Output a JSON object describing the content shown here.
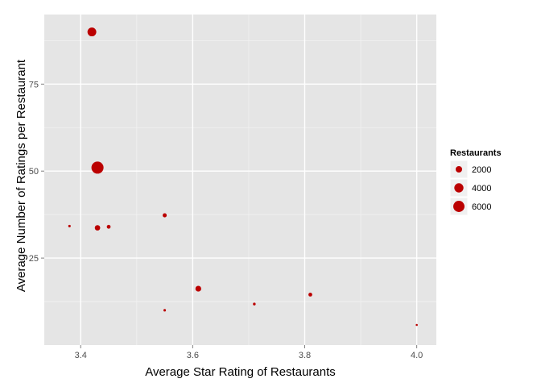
{
  "colors": {
    "panel": "#e5e5e5",
    "grid_major": "#ffffff",
    "grid_minor": "#f2f2f2",
    "point": "#bb0000",
    "tick_text": "#4d4d4d",
    "legend_key_bg": "#f0f0f0"
  },
  "chart_data": {
    "type": "scatter",
    "xlabel": "Average Star Rating of Restaurants",
    "ylabel": "Average Number of Ratings per Restaurant",
    "xlim": [
      3.335,
      4.035
    ],
    "ylim": [
      0,
      95
    ],
    "x_ticks": [
      3.4,
      3.6,
      3.8,
      4.0
    ],
    "x_tick_labels": [
      "3.4",
      "3.6",
      "3.8",
      "4.0"
    ],
    "y_ticks": [
      25,
      50,
      75
    ],
    "y_tick_labels": [
      "25",
      "50",
      "75"
    ],
    "grid": true,
    "legend": {
      "title": "Restaurants",
      "placement": "right",
      "entries": [
        {
          "label": "2000",
          "value": 2000
        },
        {
          "label": "4000",
          "value": 4000
        },
        {
          "label": "6000",
          "value": 6000
        }
      ]
    },
    "points": [
      {
        "x": 3.42,
        "y": 90.0,
        "size": 3700
      },
      {
        "x": 3.43,
        "y": 51.0,
        "size": 7000
      },
      {
        "x": 3.38,
        "y": 34.2,
        "size": 300
      },
      {
        "x": 3.43,
        "y": 33.7,
        "size": 1400
      },
      {
        "x": 3.45,
        "y": 34.0,
        "size": 700
      },
      {
        "x": 3.55,
        "y": 37.3,
        "size": 800
      },
      {
        "x": 3.55,
        "y": 10.0,
        "size": 300
      },
      {
        "x": 3.61,
        "y": 16.2,
        "size": 1600
      },
      {
        "x": 3.71,
        "y": 11.8,
        "size": 350
      },
      {
        "x": 3.81,
        "y": 14.5,
        "size": 700
      },
      {
        "x": 4.0,
        "y": 5.8,
        "size": 200
      }
    ]
  }
}
